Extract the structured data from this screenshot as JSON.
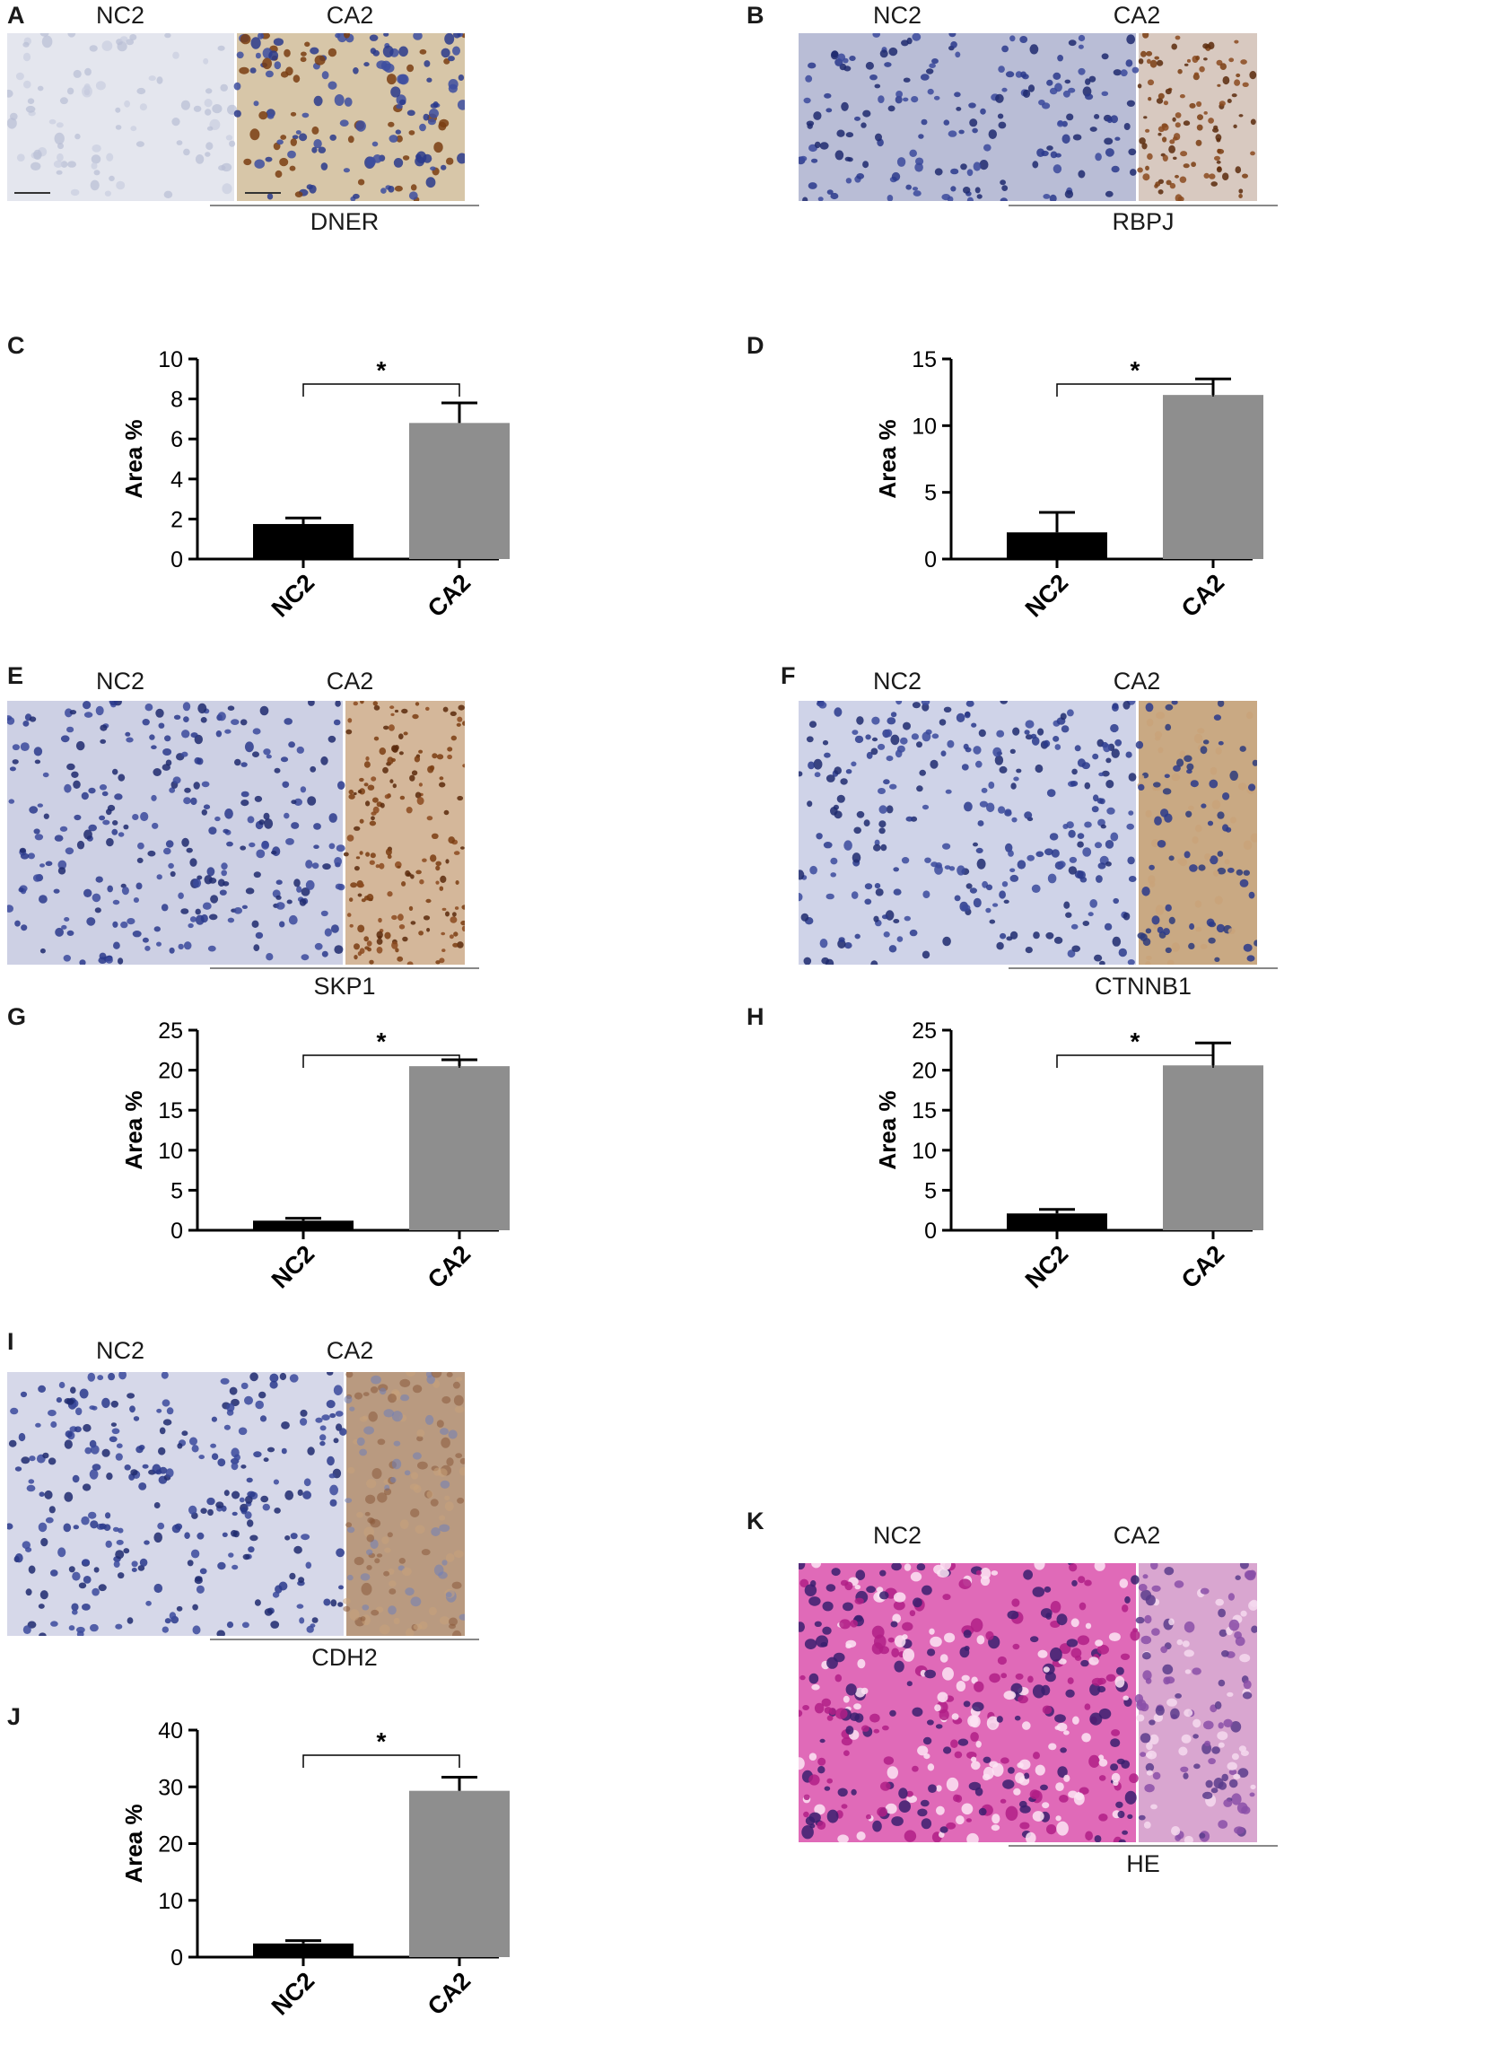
{
  "panels": {
    "A": {
      "letter": "A",
      "left_label": "NC2",
      "right_label": "CA2",
      "gene": "DNER"
    },
    "B": {
      "letter": "B",
      "left_label": "NC2",
      "right_label": "CA2",
      "gene": "RBPJ"
    },
    "E": {
      "letter": "E",
      "left_label": "NC2",
      "right_label": "CA2",
      "gene": "SKP1"
    },
    "F": {
      "letter": "F",
      "left_label": "NC2",
      "right_label": "CA2",
      "gene": "CTNNB1"
    },
    "I": {
      "letter": "I",
      "left_label": "NC2",
      "right_label": "CA2",
      "gene": "CDH2"
    },
    "K": {
      "letter": "K",
      "left_label": "NC2",
      "right_label": "CA2",
      "gene": "HE"
    }
  },
  "stain_colors": {
    "background_light": "#e6e8ef",
    "hematoxylin_blue": "#2a3a8c",
    "dab_brown": "#7a3d12",
    "dab_tan": "#c9a37a",
    "eosin_pink": "#d6359e",
    "eosin_light": "#f3c6e4"
  },
  "bar_colors": {
    "NC2": "#000000",
    "CA2": "#8e8e8e"
  },
  "chart_data": [
    {
      "id": "C",
      "type": "bar",
      "letter": "C",
      "categories": [
        "NC2",
        "CA2"
      ],
      "values": [
        1.75,
        6.8
      ],
      "errors": [
        0.3,
        1.0
      ],
      "ylabel": "Area %",
      "ylim": [
        0,
        10
      ],
      "yticks": [
        "0",
        "2",
        "4",
        "6",
        "8",
        "10"
      ],
      "significance": "*"
    },
    {
      "id": "D",
      "type": "bar",
      "letter": "D",
      "categories": [
        "NC2",
        "CA2"
      ],
      "values": [
        2.0,
        12.3
      ],
      "errors": [
        1.5,
        1.2
      ],
      "ylabel": "Area %",
      "ylim": [
        0,
        15
      ],
      "yticks": [
        "0",
        "5",
        "10",
        "15"
      ],
      "significance": "*"
    },
    {
      "id": "G",
      "type": "bar",
      "letter": "G",
      "categories": [
        "NC2",
        "CA2"
      ],
      "values": [
        1.2,
        20.5
      ],
      "errors": [
        0.3,
        0.8
      ],
      "ylabel": "Area %",
      "ylim": [
        0,
        25
      ],
      "yticks": [
        "0",
        "5",
        "10",
        "15",
        "20",
        "25"
      ],
      "significance": "*"
    },
    {
      "id": "H",
      "type": "bar",
      "letter": "H",
      "categories": [
        "NC2",
        "CA2"
      ],
      "values": [
        2.1,
        20.6
      ],
      "errors": [
        0.5,
        2.8
      ],
      "ylabel": "Area %",
      "ylim": [
        0,
        25
      ],
      "yticks": [
        "0",
        "5",
        "10",
        "15",
        "20",
        "25"
      ],
      "significance": "*"
    },
    {
      "id": "J",
      "type": "bar",
      "letter": "J",
      "categories": [
        "NC2",
        "CA2"
      ],
      "values": [
        2.4,
        29.3
      ],
      "errors": [
        0.5,
        2.4
      ],
      "ylabel": "Area %",
      "ylim": [
        0,
        40
      ],
      "yticks": [
        "0",
        "10",
        "20",
        "30",
        "40"
      ],
      "significance": "*"
    }
  ]
}
